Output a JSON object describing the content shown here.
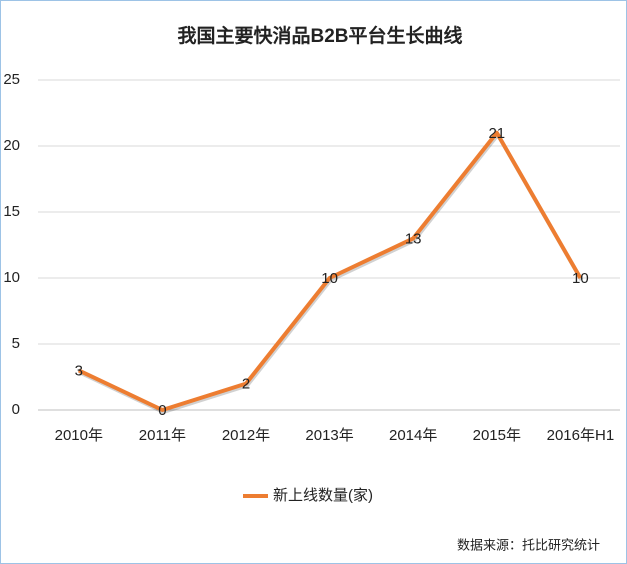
{
  "chart_data": {
    "type": "line",
    "title": "我国主要快消品B2B平台生长曲线",
    "categories": [
      "2010年",
      "2011年",
      "2012年",
      "2013年",
      "2014年",
      "2015年",
      "2016年H1"
    ],
    "series": [
      {
        "name": "新上线数量(家)",
        "color": "#ed7d31",
        "values": [
          3,
          0,
          2,
          10,
          13,
          21,
          10
        ]
      }
    ],
    "ylim": [
      0,
      25
    ],
    "yticks": [
      0,
      5,
      10,
      15,
      20,
      25
    ],
    "grid": true,
    "legend": "bottom",
    "source": "数据来源：托比研究统计"
  }
}
